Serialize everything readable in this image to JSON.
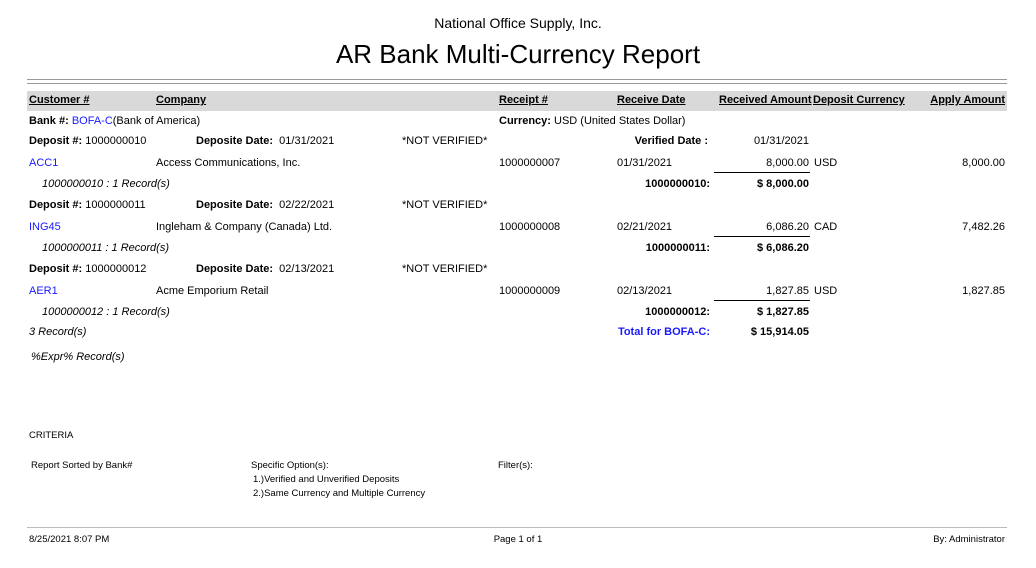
{
  "company_name": "National Office Supply, Inc.",
  "report_title": "AR Bank Multi-Currency Report",
  "columns": {
    "customer": "Customer #",
    "company": "Company",
    "receipt": "Receipt #",
    "receive_date": "Receive Date",
    "received_amount": "Received Amount",
    "deposit_currency": "Deposit Currency",
    "apply_amount": "Apply Amount"
  },
  "bank": {
    "label": "Bank #:",
    "code": "BOFA-C",
    "name": "(Bank of America)",
    "currency_label": "Currency:",
    "currency": "USD (United States Dollar)"
  },
  "deposit_label": "Deposit #:",
  "deposit_date_label": "Deposite Date:",
  "verified_date_label": "Verified Date :",
  "deposits": [
    {
      "number": "1000000010",
      "date": "01/31/2021",
      "status": "*NOT VERIFIED*",
      "verified_date": "01/31/2021",
      "customer": "ACC1",
      "company": "Access Communications, Inc.",
      "receipt": "1000000007",
      "receive_date": "01/31/2021",
      "received_amount": "8,000.00",
      "currency": "USD",
      "apply_amount": "8,000.00",
      "records": "1000000010 : 1 Record(s)",
      "subtotal_label": "1000000010:",
      "subtotal": "$ 8,000.00"
    },
    {
      "number": "1000000011",
      "date": "02/22/2021",
      "status": "*NOT VERIFIED*",
      "customer": "ING45",
      "company": "Ingleham & Company (Canada) Ltd.",
      "receipt": "1000000008",
      "receive_date": "02/21/2021",
      "received_amount": "6,086.20",
      "currency": "CAD",
      "apply_amount": "7,482.26",
      "records": "1000000011 : 1 Record(s)",
      "subtotal_label": "1000000011:",
      "subtotal": "$ 6,086.20"
    },
    {
      "number": "1000000012",
      "date": "02/13/2021",
      "status": "*NOT VERIFIED*",
      "customer": "AER1",
      "company": "Acme Emporium Retail",
      "receipt": "1000000009",
      "receive_date": "02/13/2021",
      "received_amount": "1,827.85",
      "currency": "USD",
      "apply_amount": "1,827.85",
      "records": "1000000012 : 1 Record(s)",
      "subtotal_label": "1000000012:",
      "subtotal": "$ 1,827.85"
    }
  ],
  "bank_records": "3 Record(s)",
  "bank_total_label": "Total for BOFA-C:",
  "bank_total": "$ 15,914.05",
  "expr_records": "%Expr% Record(s)",
  "criteria": {
    "title": "CRITERIA",
    "sorted": "Report Sorted by Bank#",
    "options_label": "Specific Option(s):",
    "options": [
      "1.)Verified and Unverified Deposits",
      "2.)Same Currency and Multiple Currency"
    ],
    "filters_label": "Filter(s):"
  },
  "footer": {
    "datetime": "8/25/2021 8:07 PM",
    "page": "Page 1 of 1",
    "by": "By: Administrator"
  }
}
